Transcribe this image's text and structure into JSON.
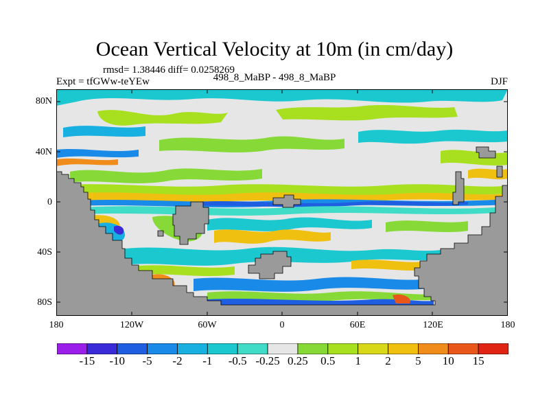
{
  "title": "Ocean Vertical Velocity at 10m (in cm/day)",
  "stats": "rmsd= 1.38446 diff= 0.0258269",
  "experiment": "Expt = tfGWw-teYEw",
  "comparison": "498_8_MaBP - 498_8_MaBP",
  "season": "DJF",
  "chart_data": {
    "type": "heatmap",
    "title": "Ocean Vertical Velocity at 10m (in cm/day)",
    "units": "cm/day",
    "x_axis": {
      "range": [
        -180,
        180
      ],
      "ticks": [
        "180",
        "120W",
        "60W",
        "0",
        "60E",
        "120E",
        "180"
      ]
    },
    "y_axis": {
      "range": [
        -90,
        90
      ],
      "ticks": [
        "80N",
        "40N",
        "0",
        "40S",
        "80S"
      ]
    },
    "colorbar": {
      "levels": [
        "-15",
        "-10",
        "-5",
        "-2",
        "-1",
        "-0.5",
        "-0.25",
        "0.25",
        "0.5",
        "1",
        "2",
        "5",
        "10",
        "15"
      ],
      "colors": [
        "#9b1fe8",
        "#3a2ad8",
        "#1f5ee0",
        "#1a8ae8",
        "#18b0e0",
        "#1cc8d0",
        "#40dcc8",
        "#e6e6e6",
        "#86d936",
        "#a8e020",
        "#d8d818",
        "#f0c010",
        "#f08c1a",
        "#e8561a",
        "#e02414"
      ]
    },
    "land_color": "#9a9a9a",
    "ocean_default_color": "#e6e6e6"
  }
}
